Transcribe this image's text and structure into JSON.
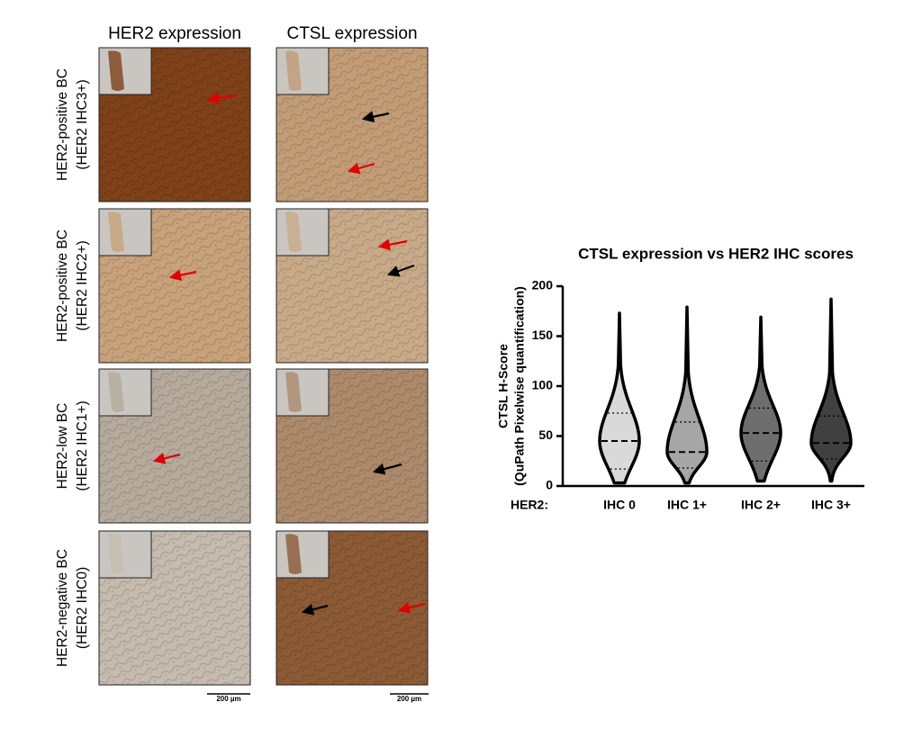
{
  "figure": {
    "column_headers": [
      "HER2 expression",
      "CTSL expression"
    ],
    "row_labels": [
      [
        "HER2-positive BC",
        "(HER2 IHC3+)"
      ],
      [
        "HER2-positive BC",
        "(HER2 IHC2+)"
      ],
      [
        "HER2-low BC",
        "(HER2 IHC1+)"
      ],
      [
        "HER2-negative BC",
        "(HER2 IHC0)"
      ]
    ],
    "scale_bar_labels": [
      "200 µm",
      "200 µm"
    ]
  },
  "chart_data": {
    "type": "violin",
    "title": "CTSL expression vs HER2 IHC scores",
    "y_label": [
      "CTSL H-Score",
      "(QuPath Pixelwise quantification)"
    ],
    "x_axis_prefix": "HER2:",
    "categories": [
      "IHC 0",
      "IHC 1+",
      "IHC 2+",
      "IHC 3+"
    ],
    "violins": [
      {
        "color": "#d9d9d9",
        "min": 3,
        "q1": 17,
        "median": 45,
        "q3": 73,
        "max": 173
      },
      {
        "color": "#a6a6a6",
        "min": 3,
        "q1": 18,
        "median": 34,
        "q3": 64,
        "max": 179
      },
      {
        "color": "#6e6e6e",
        "min": 5,
        "q1": 25,
        "median": 53,
        "q3": 78,
        "max": 169
      },
      {
        "color": "#404040",
        "min": 5,
        "q1": 27,
        "median": 43,
        "q3": 70,
        "max": 187
      }
    ],
    "ylim": [
      0,
      200
    ],
    "yticks": [
      0,
      50,
      100,
      150,
      200
    ]
  }
}
